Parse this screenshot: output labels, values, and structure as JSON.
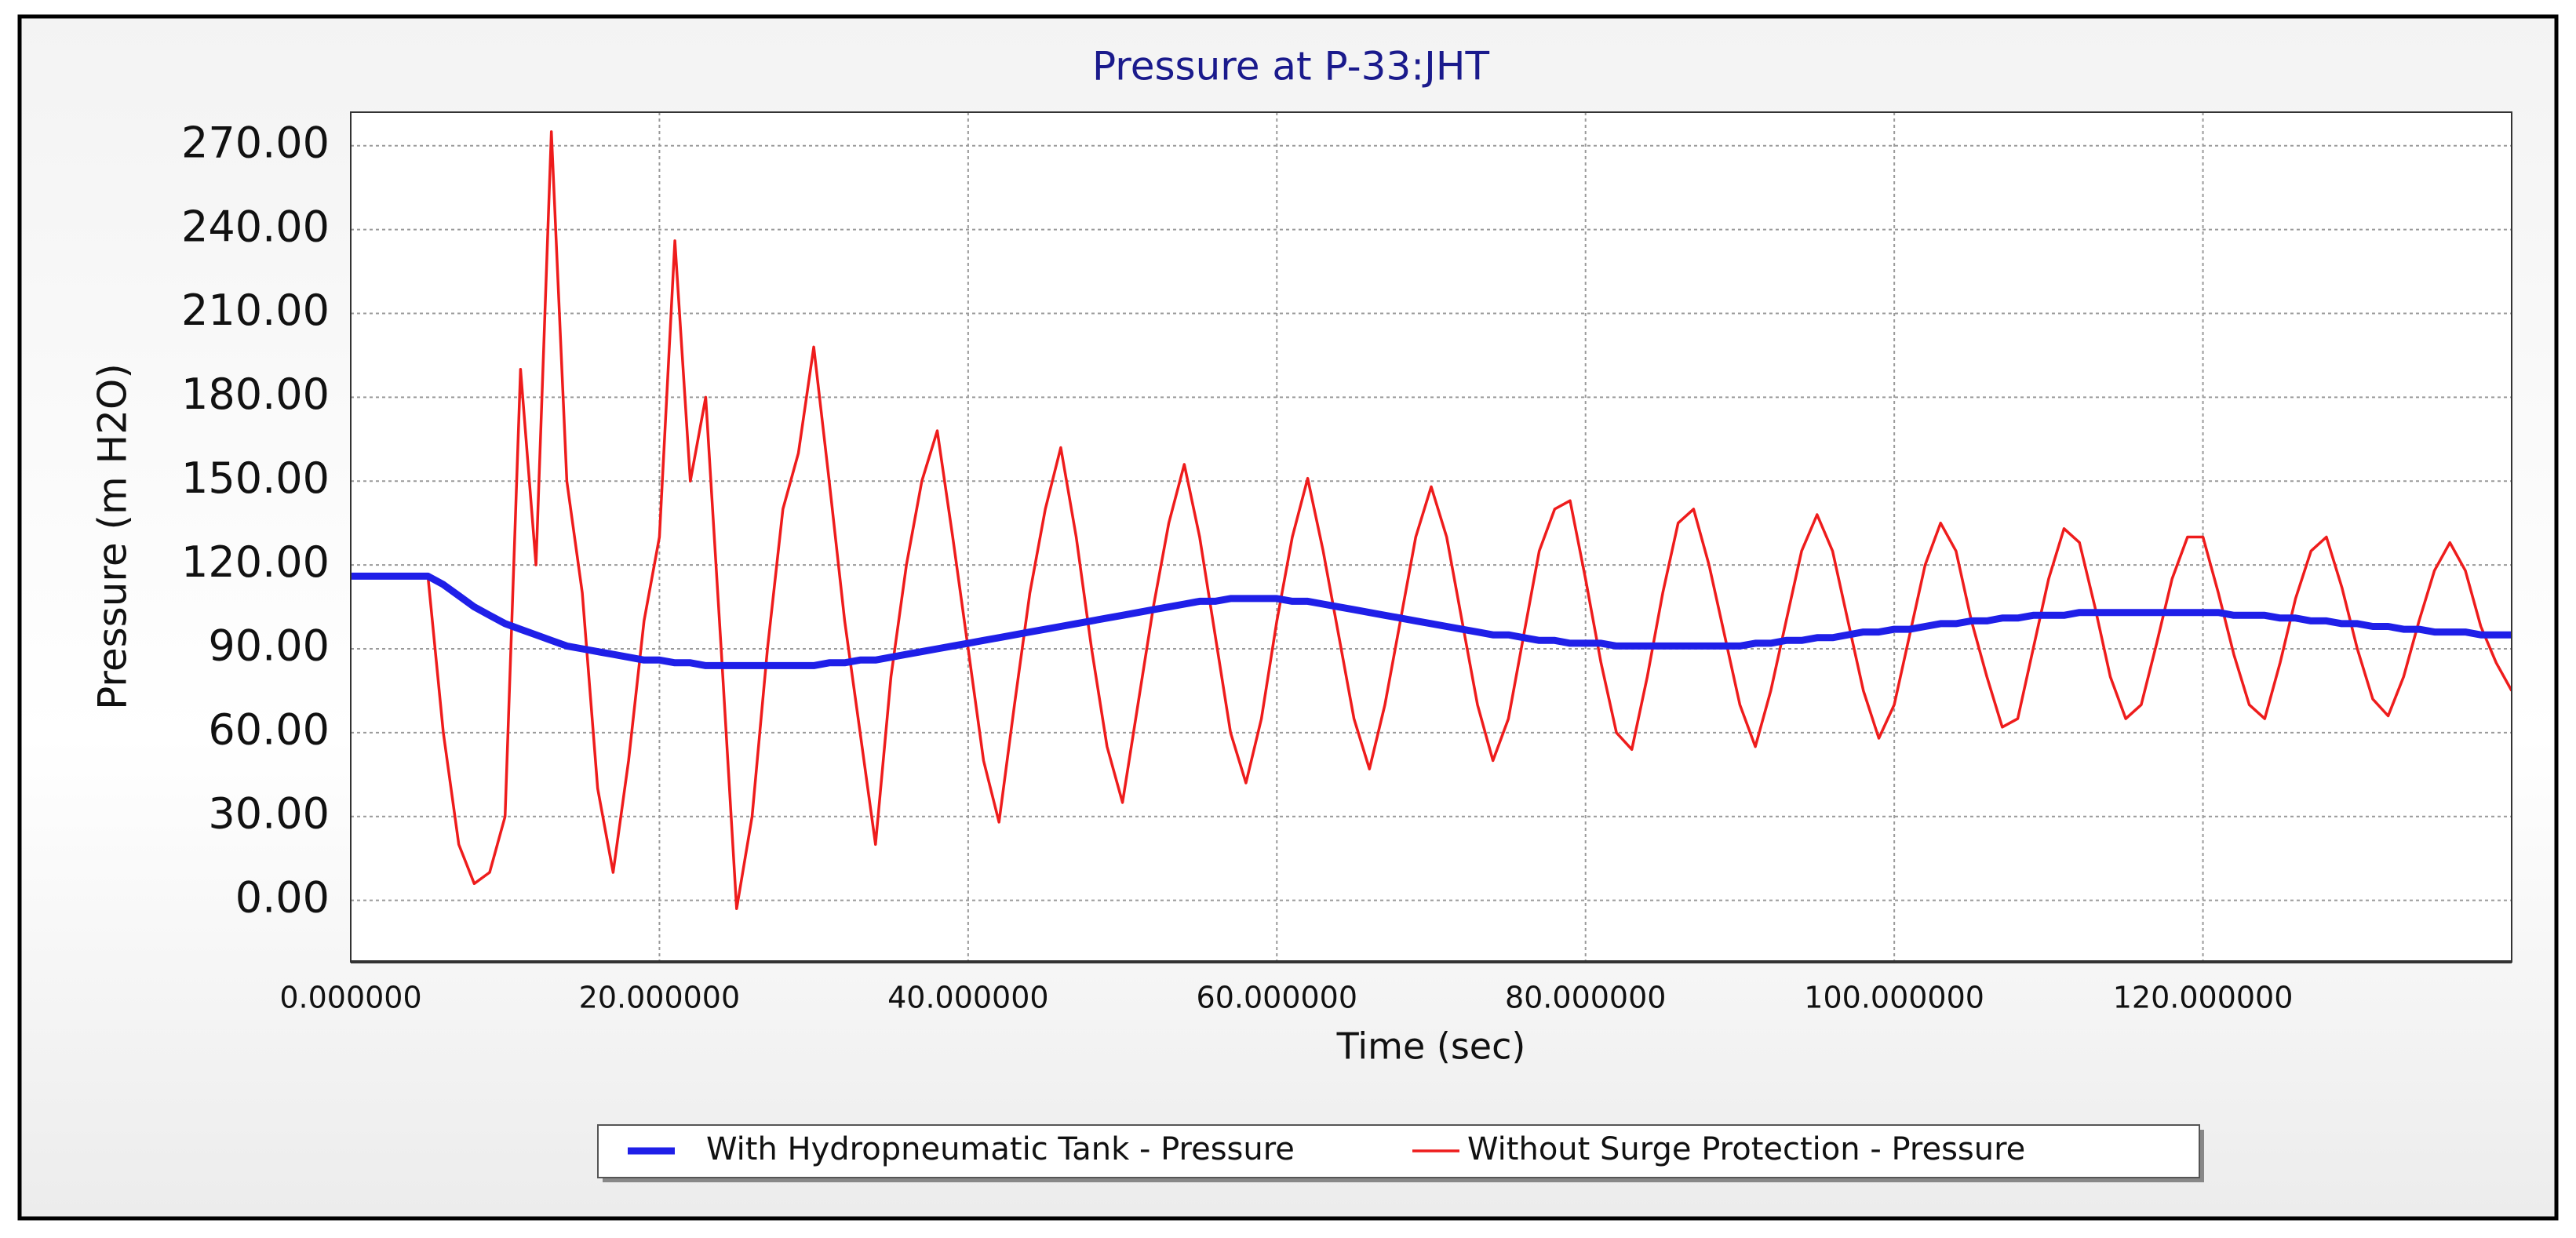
{
  "chart_data": {
    "type": "line",
    "title": "Pressure at P-33:JHT",
    "xlabel": "Time (sec)",
    "ylabel": "Pressure (m H2O)",
    "x": [
      0,
      1,
      2,
      3,
      4,
      5,
      6,
      7,
      8,
      9,
      10,
      11,
      12,
      13,
      14,
      15,
      16,
      17,
      18,
      19,
      20,
      21,
      22,
      23,
      24,
      25,
      26,
      27,
      28,
      29,
      30,
      31,
      32,
      33,
      34,
      35,
      36,
      37,
      38,
      39,
      40,
      41,
      42,
      43,
      44,
      45,
      46,
      47,
      48,
      49,
      50,
      51,
      52,
      53,
      54,
      55,
      56,
      57,
      58,
      59,
      60,
      61,
      62,
      63,
      64,
      65,
      66,
      67,
      68,
      69,
      70,
      71,
      72,
      73,
      74,
      75,
      76,
      77,
      78,
      79,
      80,
      81,
      82,
      83,
      84,
      85,
      86,
      87,
      88,
      89,
      90,
      91,
      92,
      93,
      94,
      95,
      96,
      97,
      98,
      99,
      100,
      101,
      102,
      103,
      104,
      105,
      106,
      107,
      108,
      109,
      110,
      111,
      112,
      113,
      114,
      115,
      116,
      117,
      118,
      119,
      120,
      121,
      122,
      123,
      124,
      125,
      126,
      127,
      128,
      129,
      130,
      131,
      132,
      133,
      134,
      135,
      136,
      137,
      138,
      139,
      140
    ],
    "series": [
      {
        "name": "With Hydropneumatic Tank - Pressure",
        "color": "#1f1fe8",
        "values": [
          116,
          116,
          116,
          116,
          116,
          116,
          113,
          109,
          105,
          102,
          99,
          97,
          95,
          93,
          91,
          90,
          89,
          88,
          87,
          86,
          86,
          85,
          85,
          84,
          84,
          84,
          84,
          84,
          84,
          84,
          84,
          85,
          85,
          86,
          86,
          87,
          88,
          89,
          90,
          91,
          92,
          93,
          94,
          95,
          96,
          97,
          98,
          99,
          100,
          101,
          102,
          103,
          104,
          105,
          106,
          107,
          107,
          108,
          108,
          108,
          108,
          107,
          107,
          106,
          105,
          104,
          103,
          102,
          101,
          100,
          99,
          98,
          97,
          96,
          95,
          95,
          94,
          93,
          93,
          92,
          92,
          92,
          91,
          91,
          91,
          91,
          91,
          91,
          91,
          91,
          91,
          92,
          92,
          93,
          93,
          94,
          94,
          95,
          96,
          96,
          97,
          97,
          98,
          99,
          99,
          100,
          100,
          101,
          101,
          102,
          102,
          102,
          103,
          103,
          103,
          103,
          103,
          103,
          103,
          103,
          103,
          103,
          102,
          102,
          102,
          101,
          101,
          100,
          100,
          99,
          99,
          98,
          98,
          97,
          97,
          96,
          96,
          96,
          95,
          95,
          95
        ]
      },
      {
        "name": "Without Surge Protection - Pressure",
        "color": "#ee1c1c",
        "values": [
          116,
          116,
          116,
          116,
          116,
          116,
          60,
          20,
          6,
          10,
          30,
          190,
          120,
          275,
          150,
          110,
          40,
          10,
          50,
          100,
          130,
          236,
          150,
          180,
          90,
          -3,
          30,
          90,
          140,
          160,
          198,
          150,
          100,
          60,
          20,
          80,
          120,
          150,
          168,
          130,
          90,
          50,
          28,
          70,
          110,
          140,
          162,
          130,
          90,
          55,
          35,
          70,
          105,
          135,
          156,
          130,
          95,
          60,
          42,
          65,
          100,
          130,
          151,
          125,
          95,
          65,
          47,
          70,
          100,
          130,
          148,
          130,
          100,
          70,
          50,
          65,
          95,
          125,
          140,
          143,
          115,
          85,
          60,
          54,
          80,
          110,
          135,
          140,
          120,
          95,
          70,
          55,
          75,
          100,
          125,
          138,
          125,
          100,
          75,
          58,
          70,
          95,
          120,
          135,
          125,
          100,
          80,
          62,
          65,
          90,
          115,
          133,
          128,
          105,
          80,
          65,
          70,
          92,
          115,
          130,
          130,
          110,
          88,
          70,
          65,
          85,
          108,
          125,
          130,
          112,
          90,
          72,
          66,
          80,
          100,
          118,
          128,
          118,
          98,
          85,
          75
        ]
      }
    ],
    "xlim": [
      0,
      140
    ],
    "xticks": [
      {
        "value": 0,
        "label": "0.000000"
      },
      {
        "value": 20,
        "label": "20.000000"
      },
      {
        "value": 40,
        "label": "40.000000"
      },
      {
        "value": 60,
        "label": "60.000000"
      },
      {
        "value": 80,
        "label": "80.000000"
      },
      {
        "value": 100,
        "label": "100.000000"
      },
      {
        "value": 120,
        "label": "120.000000"
      }
    ],
    "ylim": [
      -22,
      282
    ],
    "yticks": [
      {
        "value": 0,
        "label": "0.00"
      },
      {
        "value": 30,
        "label": "30.00"
      },
      {
        "value": 60,
        "label": "60.00"
      },
      {
        "value": 90,
        "label": "90.00"
      },
      {
        "value": 120,
        "label": "120.00"
      },
      {
        "value": 150,
        "label": "150.00"
      },
      {
        "value": 180,
        "label": "180.00"
      },
      {
        "value": 210,
        "label": "210.00"
      },
      {
        "value": 240,
        "label": "240.00"
      },
      {
        "value": 270,
        "label": "270.00"
      }
    ],
    "grid": true,
    "legend": "bottom"
  }
}
